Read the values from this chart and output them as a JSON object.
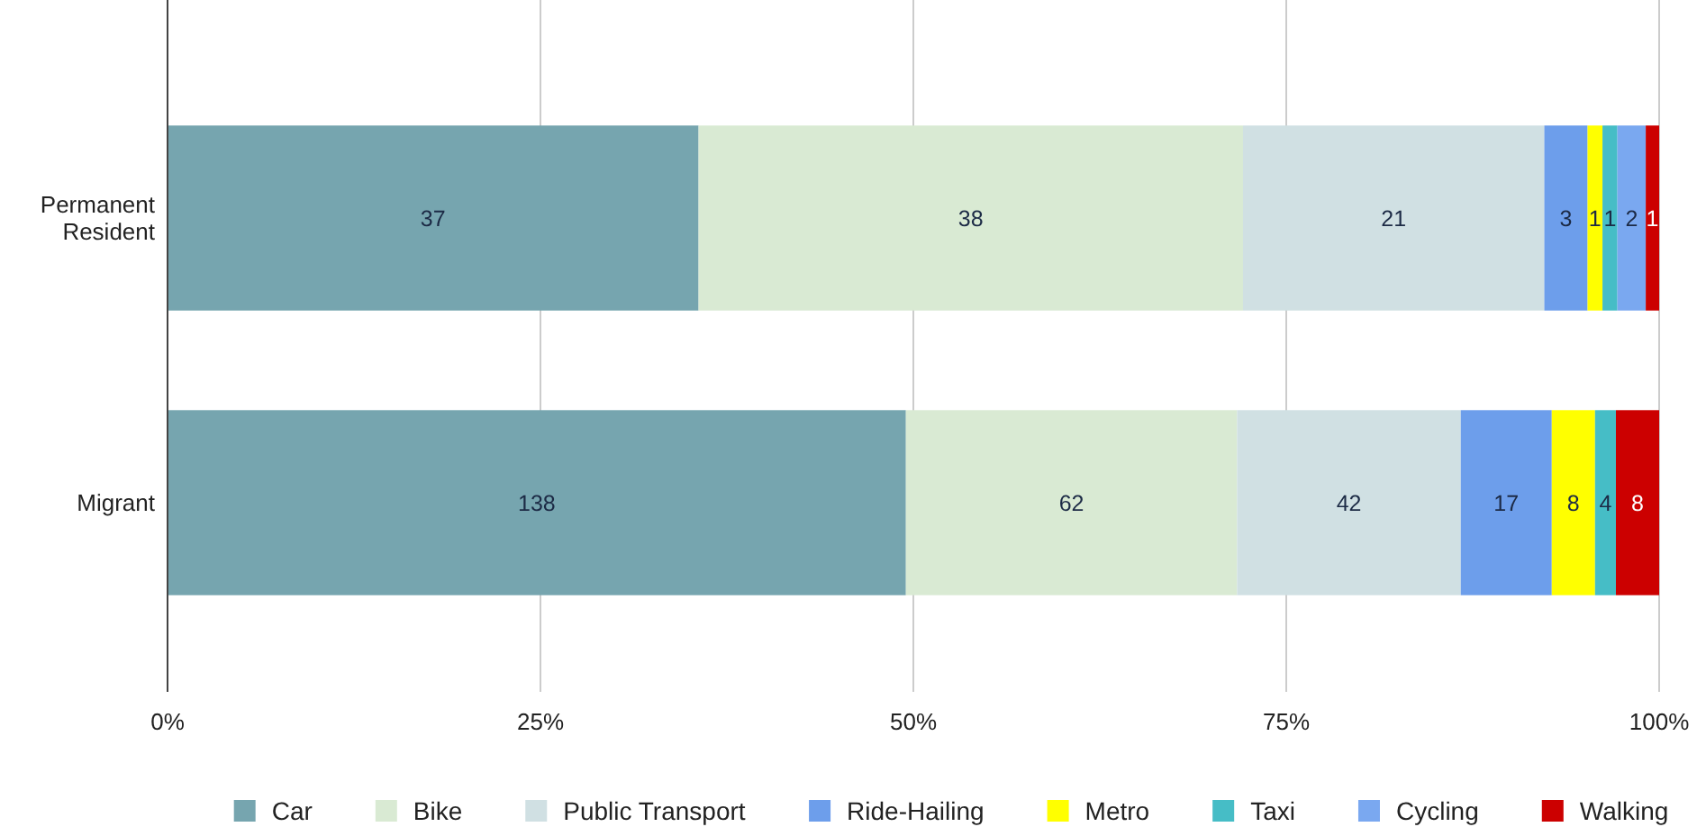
{
  "chart_data": {
    "type": "bar",
    "orientation": "horizontal",
    "stacked": true,
    "categories": [
      "Permanent Resident",
      "Migrant"
    ],
    "xlim": [
      0,
      100
    ],
    "xticks": [
      {
        "value": 0,
        "label": "0%"
      },
      {
        "value": 25,
        "label": "25%"
      },
      {
        "value": 50,
        "label": "50%"
      },
      {
        "value": 75,
        "label": "75%"
      },
      {
        "value": 100,
        "label": "100%"
      }
    ],
    "grid": "x",
    "legend": "bottom",
    "series": [
      {
        "name": "Car",
        "color": "#76a5af",
        "values": [
          35.6,
          49.5
        ]
      },
      {
        "name": "Bike",
        "color": "#d9ead3",
        "values": [
          36.5,
          22.2
        ]
      },
      {
        "name": "Public Transport",
        "color": "#d0e0e3",
        "values": [
          20.2,
          15.0
        ]
      },
      {
        "name": "Ride-Hailing",
        "color": "#6d9eeb",
        "values": [
          2.9,
          6.1
        ]
      },
      {
        "name": "Metro",
        "color": "#ffff00",
        "values": [
          1.0,
          2.9
        ]
      },
      {
        "name": "Taxi",
        "color": "#46bdc6",
        "values": [
          1.0,
          1.4
        ]
      },
      {
        "name": "Cycling",
        "color": "#7aa8f0",
        "values": [
          1.9,
          null
        ]
      },
      {
        "name": "Walking",
        "color": "#cc0000",
        "values": [
          0.9,
          2.9
        ]
      }
    ],
    "annotations": [
      "37",
      "38",
      "21",
      "3",
      "1",
      "1",
      "2",
      "1",
      "138",
      "62",
      "42",
      "17",
      "8",
      "4",
      "8"
    ]
  }
}
